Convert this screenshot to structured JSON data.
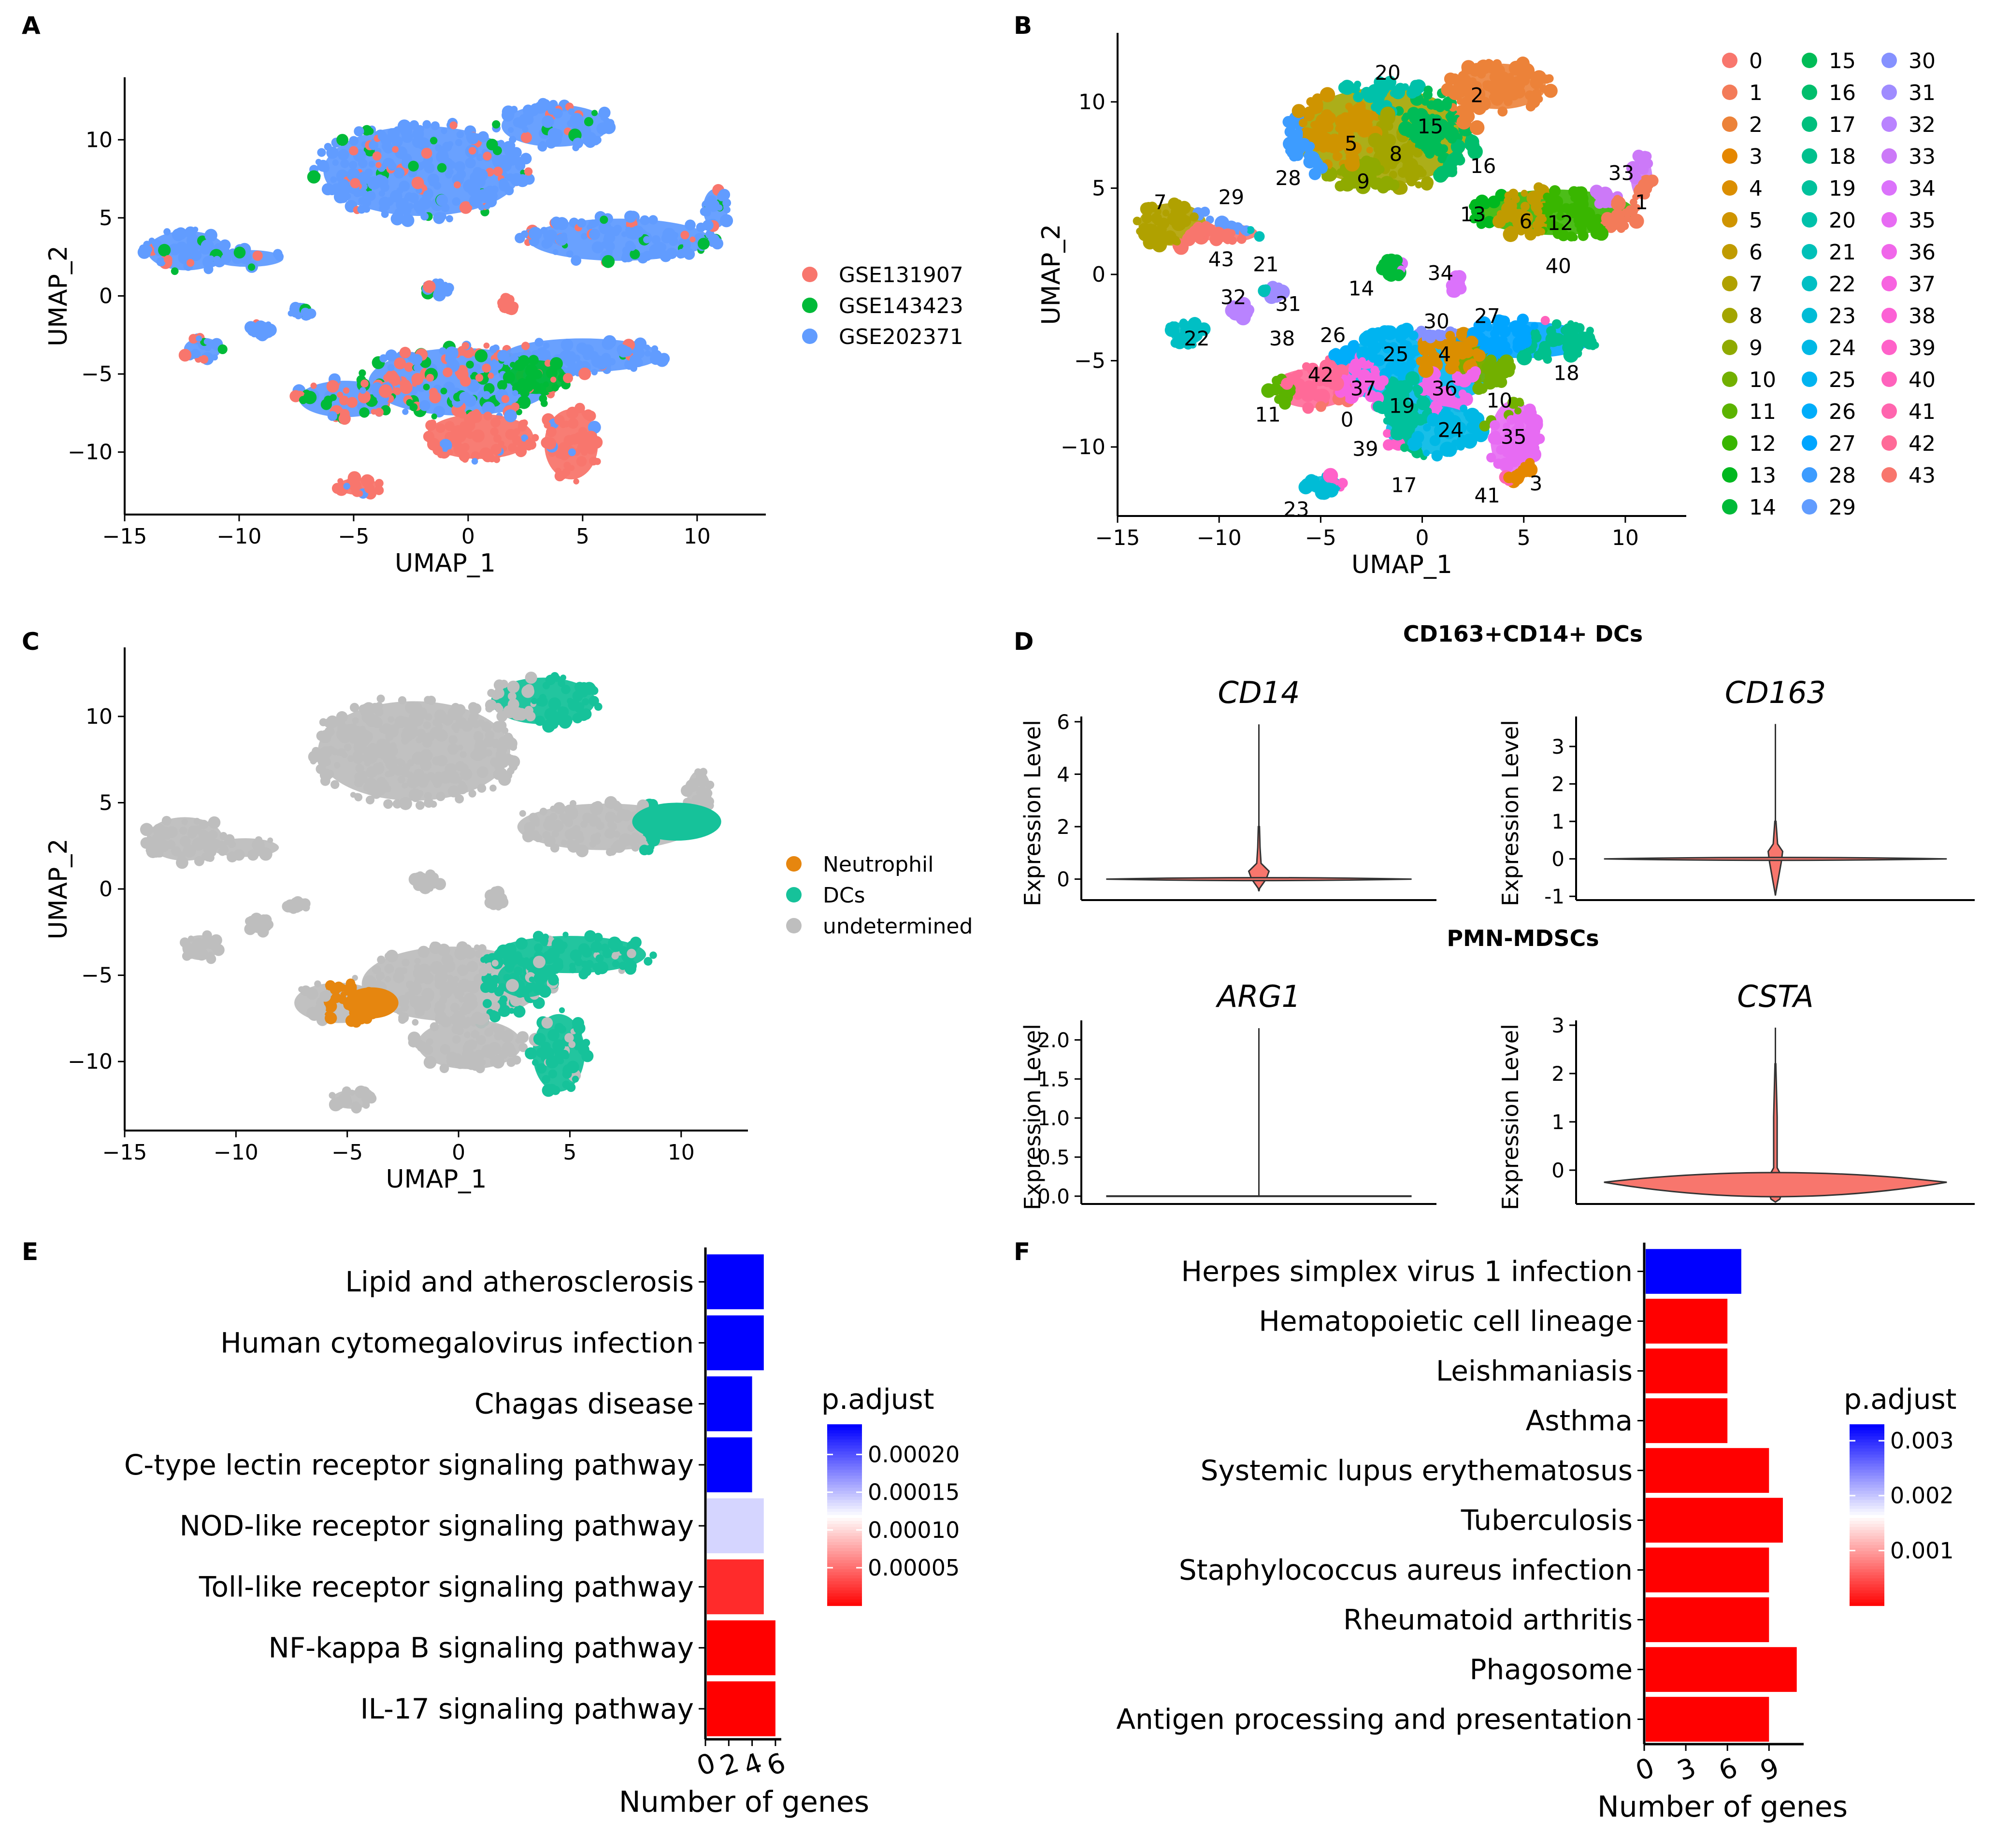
{
  "panel_letters": [
    "A",
    "B",
    "C",
    "D",
    "E",
    "F"
  ],
  "chart_data": [
    {
      "id": "A",
      "type": "scatter",
      "xlabel": "UMAP_1",
      "ylabel": "UMAP_2",
      "xlim": [
        -15,
        13
      ],
      "ylim": [
        -14,
        14
      ],
      "xticks": [
        -15,
        -10,
        -5,
        0,
        5,
        10
      ],
      "yticks": [
        10,
        5,
        0,
        -5,
        -10
      ],
      "legend": [
        {
          "label": "GSE131907",
          "color": "#F8766D"
        },
        {
          "label": "GSE143423",
          "color": "#00BA38"
        },
        {
          "label": "GSE202371",
          "color": "#619CFF"
        }
      ],
      "legend_position": "right"
    },
    {
      "id": "B",
      "type": "scatter",
      "xlabel": "UMAP_1",
      "ylabel": "UMAP_2",
      "xlim": [
        -15,
        13
      ],
      "ylim": [
        -14,
        14
      ],
      "xticks": [
        -15,
        -10,
        -5,
        0,
        5,
        10
      ],
      "yticks": [
        10,
        5,
        0,
        -5,
        -10
      ],
      "clusters": [
        "0",
        "1",
        "2",
        "3",
        "4",
        "5",
        "6",
        "7",
        "8",
        "9",
        "10",
        "11",
        "12",
        "13",
        "14",
        "15",
        "16",
        "17",
        "18",
        "19",
        "20",
        "21",
        "22",
        "23",
        "24",
        "25",
        "26",
        "27",
        "28",
        "29",
        "30",
        "31",
        "32",
        "33",
        "34",
        "35",
        "36",
        "37",
        "38",
        "39",
        "40",
        "41",
        "42",
        "43"
      ],
      "cluster_colors": [
        "#F8766D",
        "#F37B59",
        "#EC8239",
        "#E58700",
        "#DB8E00",
        "#CF9400",
        "#C09B00",
        "#B0A100",
        "#A3A500",
        "#8FAA00",
        "#72B000",
        "#5BB300",
        "#39B600",
        "#00B81F",
        "#00BA38",
        "#00BC57",
        "#00BE6C",
        "#00BF7D",
        "#00C08D",
        "#00C19C",
        "#00C1AA",
        "#00C0B8",
        "#00BFC4",
        "#00BCD6",
        "#00B8E5",
        "#00B4F0",
        "#00ADFA",
        "#00A5FF",
        "#3D9CFF",
        "#619CFF",
        "#8591FF",
        "#9F8CFF",
        "#B983FF",
        "#CC79F8",
        "#DB72FB",
        "#E76BF3",
        "#F066EA",
        "#F763E0",
        "#FC61D5",
        "#FF61C9",
        "#FF62BC",
        "#FF65AE",
        "#FF6A98",
        "#F8766D"
      ],
      "cluster_label_positions_umap": [
        {
          "c": "20",
          "x": -1.7,
          "y": 11.7
        },
        {
          "c": "2",
          "x": 2.7,
          "y": 10.4
        },
        {
          "c": "15",
          "x": 0.4,
          "y": 8.6
        },
        {
          "c": "5",
          "x": -3.5,
          "y": 7.6
        },
        {
          "c": "8",
          "x": -1.3,
          "y": 7.0
        },
        {
          "c": "9",
          "x": -2.9,
          "y": 5.4
        },
        {
          "c": "28",
          "x": -6.6,
          "y": 5.6
        },
        {
          "c": "16",
          "x": 3.0,
          "y": 6.3
        },
        {
          "c": "33",
          "x": 9.8,
          "y": 5.9
        },
        {
          "c": "1",
          "x": 10.8,
          "y": 4.2
        },
        {
          "c": "13",
          "x": 2.5,
          "y": 3.5
        },
        {
          "c": "6",
          "x": 5.1,
          "y": 3.1
        },
        {
          "c": "12",
          "x": 6.8,
          "y": 3.0
        },
        {
          "c": "40",
          "x": 6.7,
          "y": 0.5
        },
        {
          "c": "7",
          "x": -12.9,
          "y": 4.2
        },
        {
          "c": "29",
          "x": -9.4,
          "y": 4.5
        },
        {
          "c": "43",
          "x": -9.9,
          "y": 0.9
        },
        {
          "c": "21",
          "x": -7.7,
          "y": 0.6
        },
        {
          "c": "32",
          "x": -9.3,
          "y": -1.3
        },
        {
          "c": "31",
          "x": -6.6,
          "y": -1.7
        },
        {
          "c": "14",
          "x": -3.0,
          "y": -0.8
        },
        {
          "c": "34",
          "x": 0.9,
          "y": 0.1
        },
        {
          "c": "22",
          "x": -11.1,
          "y": -3.7
        },
        {
          "c": "38",
          "x": -6.9,
          "y": -3.7
        },
        {
          "c": "26",
          "x": -4.4,
          "y": -3.5
        },
        {
          "c": "30",
          "x": 0.7,
          "y": -2.7
        },
        {
          "c": "27",
          "x": 3.2,
          "y": -2.4
        },
        {
          "c": "25",
          "x": -1.3,
          "y": -4.6
        },
        {
          "c": "4",
          "x": 1.1,
          "y": -4.6
        },
        {
          "c": "42",
          "x": -5.0,
          "y": -5.8
        },
        {
          "c": "37",
          "x": -2.9,
          "y": -6.6
        },
        {
          "c": "36",
          "x": 1.1,
          "y": -6.6
        },
        {
          "c": "18",
          "x": 7.1,
          "y": -5.7
        },
        {
          "c": "19",
          "x": -1.0,
          "y": -7.6
        },
        {
          "c": "10",
          "x": 3.8,
          "y": -7.3
        },
        {
          "c": "11",
          "x": -7.6,
          "y": -8.1
        },
        {
          "c": "0",
          "x": -3.7,
          "y": -8.4
        },
        {
          "c": "24",
          "x": 1.4,
          "y": -9.0
        },
        {
          "c": "35",
          "x": 4.5,
          "y": -9.4
        },
        {
          "c": "39",
          "x": -2.8,
          "y": -10.1
        },
        {
          "c": "17",
          "x": -0.9,
          "y": -12.2
        },
        {
          "c": "41",
          "x": 3.2,
          "y": -12.8
        },
        {
          "c": "3",
          "x": 5.6,
          "y": -12.1
        },
        {
          "c": "23",
          "x": -6.2,
          "y": -13.6
        }
      ]
    },
    {
      "id": "C",
      "type": "scatter",
      "xlabel": "UMAP_1",
      "ylabel": "UMAP_2",
      "xlim": [
        -15,
        13
      ],
      "ylim": [
        -14,
        14
      ],
      "xticks": [
        -15,
        -10,
        -5,
        0,
        5,
        10
      ],
      "yticks": [
        10,
        5,
        0,
        -5,
        -10
      ],
      "legend": [
        {
          "label": "Neutrophil",
          "color": "#E6860F"
        },
        {
          "label": "DCs",
          "color": "#16C29A"
        },
        {
          "label": "undetermined",
          "color": "#BEBEBE"
        }
      ],
      "legend_position": "right"
    },
    {
      "id": "D",
      "type": "violin",
      "groups": [
        {
          "title": "CD163+CD14+ DCs",
          "plots": [
            {
              "gene": "CD14",
              "ylabel": "Expression Level",
              "ylim": [
                -0.8,
                6.2
              ],
              "yticks": [
                "0",
                "2",
                "4",
                "6"
              ],
              "ytick_values": [
                0,
                2,
                4,
                6
              ],
              "max": 5.9,
              "bulge": [
                [
                  -0.35,
                  0.05
                ],
                [
                  0,
                  0.5
                ],
                [
                  0.3,
                  0.7
                ],
                [
                  0.6,
                  0.15
                ],
                [
                  1.2,
                  0.08
                ],
                [
                  2,
                  0.04
                ]
              ]
            },
            {
              "gene": "CD163",
              "ylabel": "Expression Level",
              "ylim": [
                -1.1,
                3.8
              ],
              "yticks": [
                "-1",
                "0",
                "1",
                "2",
                "3"
              ],
              "ytick_values": [
                -1,
                0,
                1,
                2,
                3
              ],
              "max": 3.6,
              "bulge": [
                [
                  -0.9,
                  0.03
                ],
                [
                  -0.1,
                  0.4
                ],
                [
                  0.2,
                  0.5
                ],
                [
                  0.4,
                  0.15
                ],
                [
                  1,
                  0.04
                ]
              ]
            }
          ]
        },
        {
          "title": "PMN-MDSCs",
          "plots": [
            {
              "gene": "ARG1",
              "ylabel": "Expression Level",
              "ylim": [
                -0.1,
                2.25
              ],
              "yticks": [
                "0.0",
                "0.5",
                "1.0",
                "1.5",
                "2.0"
              ],
              "ytick_values": [
                0,
                0.5,
                1.0,
                1.5,
                2.0
              ],
              "max": 2.15,
              "bulge": []
            },
            {
              "gene": "CSTA",
              "ylabel": "Expression Level",
              "ylim": [
                -0.7,
                3.1
              ],
              "yticks": [
                "0",
                "1",
                "2",
                "3"
              ],
              "ytick_values": [
                0,
                1,
                2,
                3
              ],
              "max": 2.95,
              "bulge": [
                [
                  -0.6,
                  0.3
                ],
                [
                  -0.4,
                  0.55
                ],
                [
                  -0.25,
                  1.0
                ],
                [
                  -0.05,
                  0.3
                ],
                [
                  0.05,
                  0.12
                ],
                [
                  0.6,
                  0.12
                ],
                [
                  1.1,
                  0.12
                ],
                [
                  1.6,
                  0.08
                ],
                [
                  2.2,
                  0.03
                ]
              ]
            }
          ]
        }
      ]
    },
    {
      "id": "E",
      "type": "bar",
      "orientation": "horizontal",
      "categories": [
        "Lipid and atherosclerosis",
        "Human cytomegalovirus infection",
        "Chagas disease",
        "C-type lectin receptor signaling pathway",
        "NOD-like receptor signaling pathway",
        "Toll-like receptor signaling pathway",
        "NF-kappa B signaling pathway",
        "IL-17 signaling pathway"
      ],
      "values": [
        5,
        5,
        4,
        4,
        5,
        5,
        6,
        6
      ],
      "p_adjust": [
        0.00024,
        0.00024,
        0.00024,
        0.00024,
        0.00014,
        2e-05,
        0.0,
        0.0
      ],
      "xlabel": "Number of genes",
      "xticks": [
        "0",
        "2",
        "4",
        "6"
      ],
      "xtick_values": [
        0,
        2,
        4,
        6
      ],
      "xlim": [
        0,
        6.5
      ],
      "legend_title": "p.adjust",
      "colorbar": {
        "range": [
          0,
          0.00024
        ],
        "low_color": "#FF0000",
        "mid_color": "#FFFFFF",
        "high_color": "#0000FF",
        "ticks": [
          "0.00020",
          "0.00015",
          "0.00010",
          "0.00005"
        ],
        "tick_values": [
          0.0002,
          0.00015,
          0.0001,
          5e-05
        ]
      }
    },
    {
      "id": "F",
      "type": "bar",
      "orientation": "horizontal",
      "categories": [
        "Herpes simplex virus 1 infection",
        "Hematopoietic cell lineage",
        "Leishmaniasis",
        "Asthma",
        "Systemic lupus erythematosus",
        "Tuberculosis",
        "Staphylococcus aureus infection",
        "Rheumatoid arthritis",
        "Phagosome",
        "Antigen processing and presentation"
      ],
      "values": [
        7,
        6,
        6,
        6,
        9,
        10,
        9,
        9,
        11,
        9
      ],
      "p_adjust": [
        0.0033,
        0.0,
        0.0,
        0.0,
        0.0,
        0.0,
        0.0,
        0.0,
        0.0,
        0.0
      ],
      "xlabel": "Number of genes",
      "xticks": [
        "0",
        "3",
        "6",
        "9"
      ],
      "xtick_values": [
        0,
        3,
        6,
        9
      ],
      "xlim": [
        0,
        11.5
      ],
      "legend_title": "p.adjust",
      "colorbar": {
        "range": [
          0,
          0.0033
        ],
        "low_color": "#FF0000",
        "mid_color": "#FFFFFF",
        "high_color": "#0000FF",
        "ticks": [
          "0.003",
          "0.002",
          "0.001"
        ],
        "tick_values": [
          0.003,
          0.002,
          0.001
        ]
      }
    }
  ]
}
